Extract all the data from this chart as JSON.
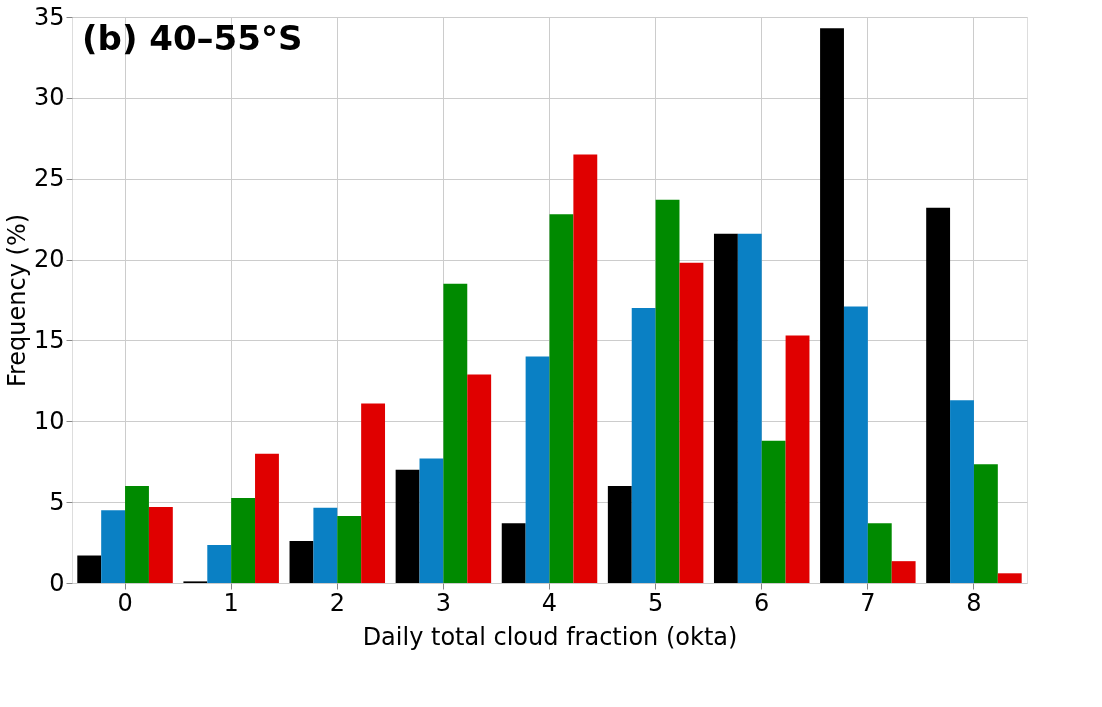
{
  "chart_data": {
    "type": "bar",
    "title": "(b) 40–55°S",
    "xlabel": "Daily total cloud fraction (okta)",
    "ylabel": "Frequency (%)",
    "categories": [
      "0",
      "1",
      "2",
      "3",
      "4",
      "5",
      "6",
      "7",
      "8"
    ],
    "series": [
      {
        "color": "#000000",
        "values": [
          1.7,
          0.1,
          2.6,
          7.0,
          3.7,
          6.0,
          21.6,
          34.3,
          23.2
        ]
      },
      {
        "color": "#0a80c4",
        "values": [
          4.5,
          2.35,
          4.65,
          7.7,
          14.0,
          17.0,
          21.6,
          17.1,
          11.3
        ]
      },
      {
        "color": "#008a00",
        "values": [
          6.0,
          5.25,
          4.15,
          18.5,
          22.8,
          23.7,
          8.8,
          3.7,
          7.35
        ]
      },
      {
        "color": "#e00000",
        "values": [
          4.7,
          8.0,
          11.1,
          12.9,
          26.5,
          19.8,
          15.3,
          1.35,
          0.6
        ]
      }
    ],
    "ylim": [
      0,
      35
    ],
    "yticks": [
      0,
      5,
      10,
      15,
      20,
      25,
      30,
      35
    ],
    "grid": true,
    "legend": false
  }
}
